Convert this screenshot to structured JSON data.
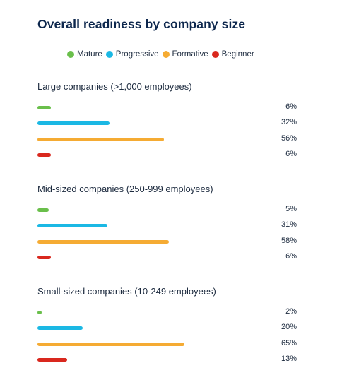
{
  "title": "Overall readiness by company size",
  "legend": [
    {
      "label": "Mature",
      "color": "#6abf4b"
    },
    {
      "label": "Progressive",
      "color": "#1bb8e4"
    },
    {
      "label": "Formative",
      "color": "#f5ab33"
    },
    {
      "label": "Beginner",
      "color": "#d9281e"
    }
  ],
  "chart_data": {
    "type": "bar",
    "orientation": "horizontal",
    "title": "Overall readiness by company size",
    "series_names": [
      "Mature",
      "Progressive",
      "Formative",
      "Beginner"
    ],
    "xlim": [
      0,
      100
    ],
    "grid": false,
    "legend_position": "top",
    "groups": [
      {
        "name": "Large companies (>1,000 employees)",
        "values": [
          6,
          32,
          56,
          6
        ],
        "labels": [
          "6%",
          "32%",
          "56%",
          "6%"
        ]
      },
      {
        "name": "Mid-sized companies (250-999 employees)",
        "values": [
          5,
          31,
          58,
          6
        ],
        "labels": [
          "5%",
          "31%",
          "58%",
          "6%"
        ]
      },
      {
        "name": "Small-sized companies (10-249 employees)",
        "values": [
          2,
          20,
          65,
          13
        ],
        "labels": [
          "2%",
          "20%",
          "65%",
          "13%"
        ]
      }
    ]
  }
}
